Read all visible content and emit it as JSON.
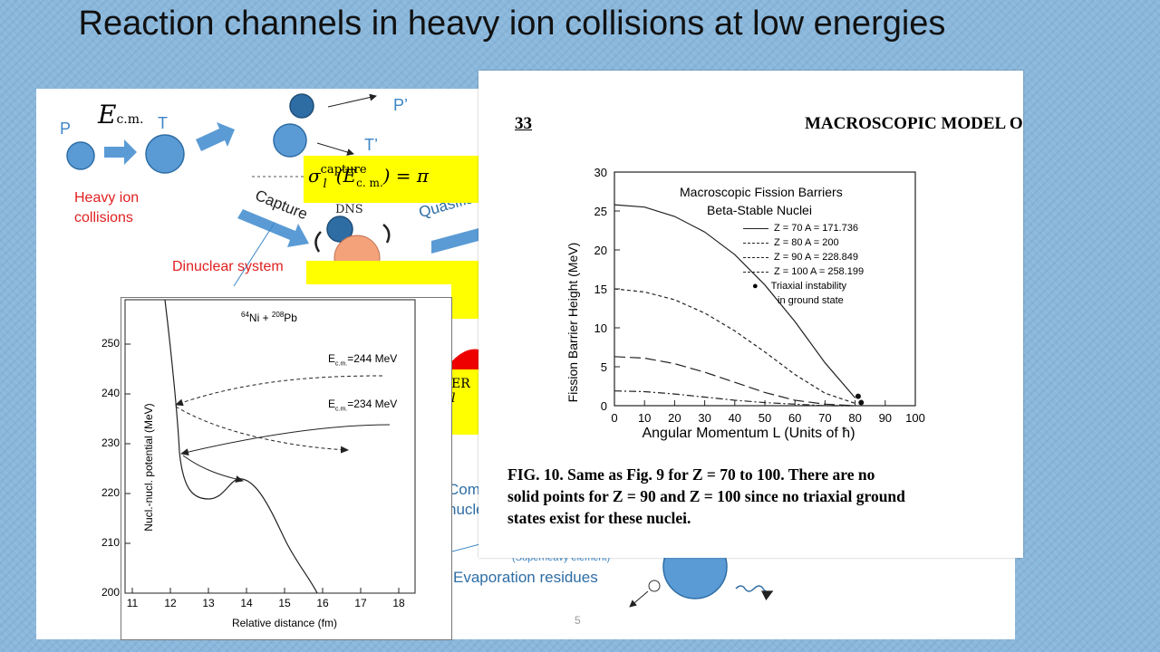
{
  "slide": {
    "title": "Reaction channels in heavy ion collisions  at low energies",
    "page_number": "5"
  },
  "diagram": {
    "ecm_symbol": "E",
    "ecm_sub": "c.m.",
    "p_label": "P",
    "t_label": "T",
    "p_prime": "P’",
    "t_prime": "T’",
    "heavy_ion_line1": "Heavy ion",
    "heavy_ion_line2": "collisions",
    "capture_label": "Capture",
    "quasifission_label": "Quasifis",
    "dns_label": "DNS",
    "dinuclear_label": "Dinuclear system",
    "com_label": "Com",
    "nucle_label": "nucle",
    "superheavy_label": "(Superheavy element)",
    "evaporation_label": "Evaporation residues",
    "formula_text": "σ",
    "formula_sup": "capture",
    "formula_sub": "l",
    "formula_arg": "(E",
    "formula_arg_sub": "c. m.",
    "formula_rest": ") = π",
    "er_sup": "ER",
    "er_sub": "l",
    "colors": {
      "blue": "#3d86c6",
      "red": "#e02020",
      "yellow": "#ffff00",
      "orange": "#f4a27a"
    }
  },
  "potential_plot": {
    "reaction_a": "64",
    "reaction_ni": "Ni + ",
    "reaction_b": "208",
    "reaction_pb": "Pb",
    "label_244": "E",
    "label_244_sub": "c.m.",
    "label_244_val": "=244 MeV",
    "label_234": "E",
    "label_234_sub": "c.m.",
    "label_234_val": "=234 MeV",
    "y_axis_label": "Nucl.-nucl. potential (MeV)",
    "x_axis_label": "Relative distance (fm)",
    "y_ticks": [
      "200",
      "210",
      "220",
      "230",
      "240",
      "250"
    ],
    "x_ticks": [
      "11",
      "12",
      "13",
      "14",
      "15",
      "16",
      "17",
      "18"
    ]
  },
  "chart_data": {
    "type": "line",
    "title": "Macroscopic Fission Barriers",
    "subtitle": "Beta-Stable Nuclei",
    "xlabel": "Angular Momentum  L  (Units of ħ)",
    "ylabel": "Fission Barrier Height  (MeV)",
    "xlim": [
      0,
      100
    ],
    "ylim": [
      0,
      30
    ],
    "x_ticks": [
      "0",
      "10",
      "20",
      "30",
      "40",
      "50",
      "60",
      "70",
      "80",
      "90",
      "100"
    ],
    "y_ticks": [
      "0",
      "5",
      "10",
      "15",
      "20",
      "25",
      "30"
    ],
    "legend_position": "top-right",
    "series": [
      {
        "name": "Z = 70   A = 171.736",
        "style": "solid",
        "x": [
          0,
          10,
          20,
          30,
          40,
          50,
          60,
          70,
          80
        ],
        "y": [
          25.8,
          25.5,
          24.3,
          22.3,
          19.4,
          15.5,
          10.8,
          5.5,
          1.0
        ]
      },
      {
        "name": "Z = 80   A = 200",
        "style": "short-dash",
        "x": [
          0,
          10,
          20,
          30,
          40,
          50,
          60,
          70,
          80
        ],
        "y": [
          15.0,
          14.6,
          13.6,
          11.9,
          9.6,
          6.9,
          4.0,
          1.6,
          0.3
        ]
      },
      {
        "name": "Z = 90   A = 228.849",
        "style": "long-dash",
        "x": [
          0,
          10,
          20,
          30,
          40,
          50,
          60,
          70,
          80
        ],
        "y": [
          6.3,
          6.1,
          5.4,
          4.3,
          3.0,
          1.7,
          0.7,
          0.2,
          0.0
        ]
      },
      {
        "name": "Z = 100   A = 258.199",
        "style": "dash-dot",
        "x": [
          0,
          10,
          20,
          30,
          40,
          50,
          60,
          70,
          80
        ],
        "y": [
          1.9,
          1.8,
          1.5,
          1.1,
          0.7,
          0.4,
          0.2,
          0.0,
          0.0
        ]
      }
    ],
    "points": {
      "name": "Triaxial instability",
      "name2": "in ground state",
      "x": [
        81,
        82
      ],
      "y": [
        1.2,
        0.4
      ]
    }
  },
  "paper": {
    "page_num": "33",
    "running_head": "MACROSCOPIC MODEL O",
    "caption_line1": "FIG. 10.  Same as Fig. 9 for  Z = 70 to 100.  There are no",
    "caption_line2": "solid points for  Z = 90  and  Z = 100  since no triaxial ground",
    "caption_line3": "states exist for these nuclei."
  }
}
